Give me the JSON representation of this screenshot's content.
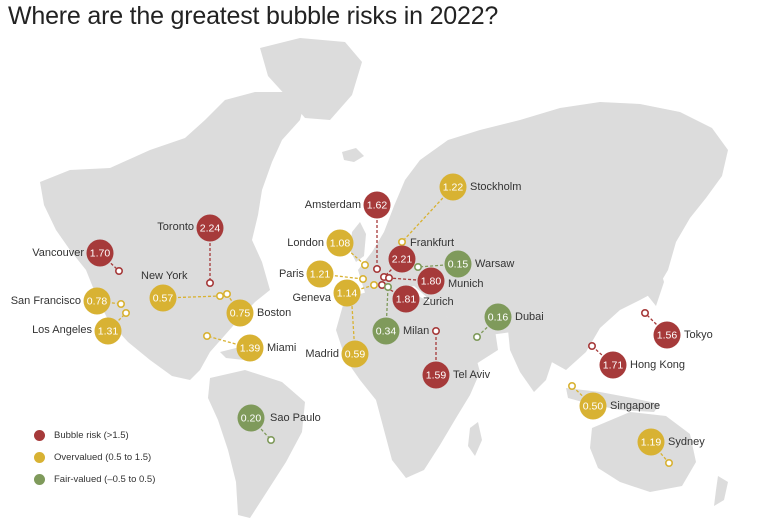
{
  "title": "Where are the greatest bubble risks in 2022?",
  "colors": {
    "bubble_risk": "#a63a3a",
    "overvalued": "#d8b233",
    "fair_valued": "#7f9a5b",
    "land": "#dcdcdc"
  },
  "legend": [
    {
      "label": "Bubble risk (>1.5)",
      "category": "bubble_risk"
    },
    {
      "label": "Overvalued (0.5 to 1.5)",
      "category": "overvalued"
    },
    {
      "label": "Fair-valued (–0.5 to 0.5)",
      "category": "fair_valued"
    }
  ],
  "cities": [
    {
      "name": "Toronto",
      "value": "2.24",
      "category": "bubble_risk"
    },
    {
      "name": "Vancouver",
      "value": "1.70",
      "category": "bubble_risk"
    },
    {
      "name": "New York",
      "value": "0.57",
      "category": "overvalued"
    },
    {
      "name": "San Francisco",
      "value": "0.78",
      "category": "overvalued"
    },
    {
      "name": "Los Angeles",
      "value": "1.31",
      "category": "overvalued"
    },
    {
      "name": "Boston",
      "value": "0.75",
      "category": "overvalued"
    },
    {
      "name": "Miami",
      "value": "1.39",
      "category": "overvalued"
    },
    {
      "name": "Sao Paulo",
      "value": "0.20",
      "category": "fair_valued"
    },
    {
      "name": "Amsterdam",
      "value": "1.62",
      "category": "bubble_risk"
    },
    {
      "name": "Stockholm",
      "value": "1.22",
      "category": "overvalued"
    },
    {
      "name": "London",
      "value": "1.08",
      "category": "overvalued"
    },
    {
      "name": "Frankfurt",
      "value": "2.21",
      "category": "bubble_risk"
    },
    {
      "name": "Warsaw",
      "value": "0.15",
      "category": "fair_valued"
    },
    {
      "name": "Paris",
      "value": "1.21",
      "category": "overvalued"
    },
    {
      "name": "Munich",
      "value": "1.80",
      "category": "bubble_risk"
    },
    {
      "name": "Geneva",
      "value": "1.14",
      "category": "overvalued"
    },
    {
      "name": "Zurich",
      "value": "1.81",
      "category": "bubble_risk"
    },
    {
      "name": "Milan",
      "value": "0.34",
      "category": "fair_valued"
    },
    {
      "name": "Madrid",
      "value": "0.59",
      "category": "overvalued"
    },
    {
      "name": "Dubai",
      "value": "0.16",
      "category": "fair_valued"
    },
    {
      "name": "Tel Aviv",
      "value": "1.59",
      "category": "bubble_risk"
    },
    {
      "name": "Tokyo",
      "value": "1.56",
      "category": "bubble_risk"
    },
    {
      "name": "Hong Kong",
      "value": "1.71",
      "category": "bubble_risk"
    },
    {
      "name": "Singapore",
      "value": "0.50",
      "category": "overvalued"
    },
    {
      "name": "Sydney",
      "value": "1.19",
      "category": "overvalued"
    }
  ]
}
